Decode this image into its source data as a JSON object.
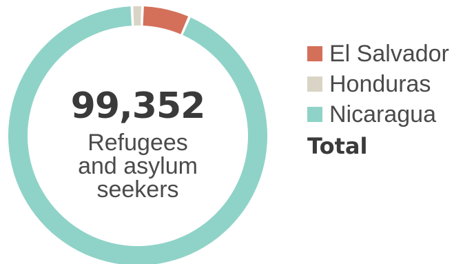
{
  "chart_data": {
    "type": "pie",
    "donut": true,
    "categories": [
      "El Salvador",
      "Honduras",
      "Nicaragua"
    ],
    "values": [
      5900,
      1300,
      92152
    ],
    "colors": [
      "#d4705a",
      "#d9d4c5",
      "#8fd3c8"
    ],
    "center_value": "99,352",
    "center_caption": [
      "Refugees",
      "and asylum",
      "seekers"
    ],
    "legend": {
      "placement": "right",
      "items": [
        {
          "label": "El Salvador",
          "color": "#d4705a"
        },
        {
          "label": "Honduras",
          "color": "#d9d4c5"
        },
        {
          "label": "Nicaragua",
          "color": "#8fd3c8"
        }
      ],
      "total_label": "Total"
    }
  }
}
